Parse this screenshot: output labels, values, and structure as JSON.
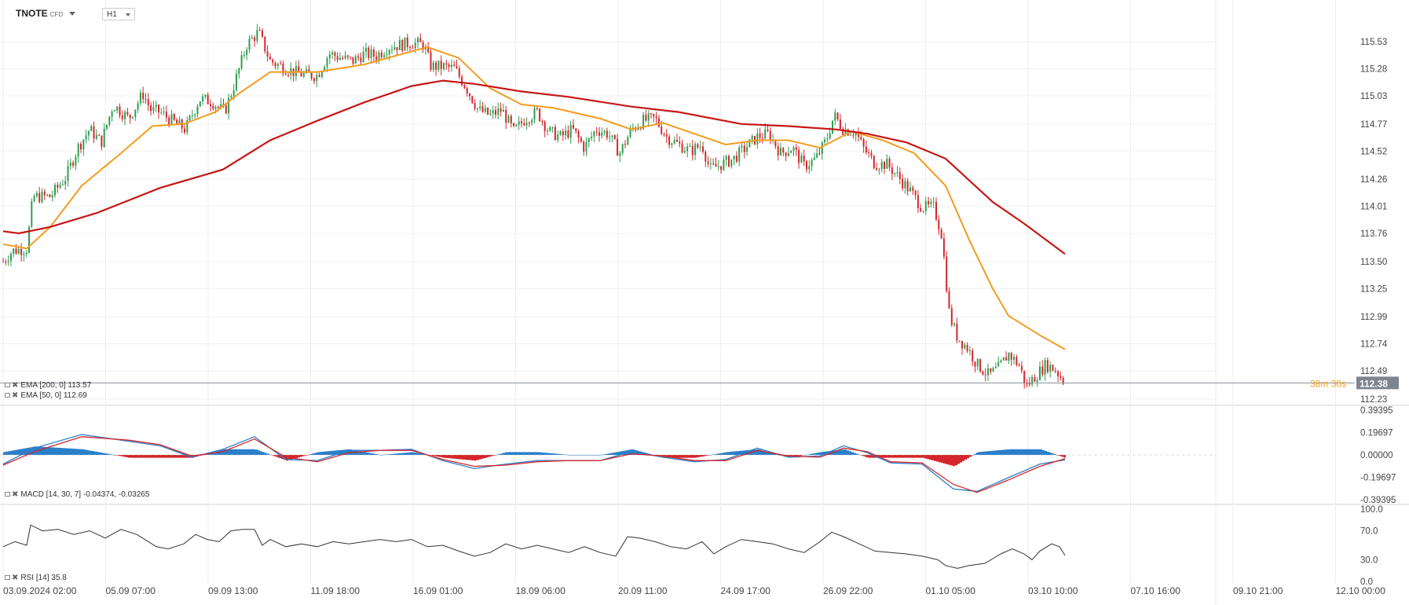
{
  "header": {
    "symbol": "TNOTE",
    "symbol_suffix": "CFD",
    "timeframe": "H1"
  },
  "legends": {
    "ema200": "EMA [200, 0] 113.57",
    "ema50": "EMA [50, 0] 112.69",
    "macd": "MACD [14, 30, 7] -0.04374, -0.03265",
    "rsi": "RSI [14] 35.8"
  },
  "price_label": "112.38",
  "countdown": "38m 30s",
  "colors": {
    "up": "#2e9e4f",
    "down": "#d4262c",
    "ema200": "#c81616",
    "ema50": "#f39c1e",
    "macd_line": "#2a7fc9",
    "signal_line": "#d4262c",
    "rsi": "#333333",
    "price_box": "#7c8590"
  },
  "chart_data": [
    {
      "type": "candlestick",
      "title": "TNOTE CFD H1",
      "x_ticks": [
        "03.09.2024 02:00",
        "05.09 07:00",
        "09.09 13:00",
        "11.09 18:00",
        "16.09 01:00",
        "18.09 06:00",
        "20.09 11:00",
        "24.09 17:00",
        "26.09 22:00",
        "01.10 05:00",
        "03.10 10:00",
        "07.10 16:00",
        "09.10 21:00",
        "12.10 00:00"
      ],
      "y_ticks": [
        "115.53",
        "115.28",
        "115.03",
        "114.77",
        "114.52",
        "114.26",
        "114.01",
        "113.76",
        "113.50",
        "113.25",
        "112.99",
        "112.74",
        "112.49",
        "112.23"
      ],
      "ylim": [
        112.23,
        115.53
      ],
      "candles": [
        {
          "x": 0,
          "y": 113.5
        },
        {
          "x": 12,
          "y": 113.6
        },
        {
          "x": 30,
          "y": 113.62
        },
        {
          "x": 38,
          "y": 114.1
        },
        {
          "x": 60,
          "y": 114.1
        },
        {
          "x": 80,
          "y": 114.28
        },
        {
          "x": 95,
          "y": 114.55
        },
        {
          "x": 110,
          "y": 114.72
        },
        {
          "x": 125,
          "y": 114.6
        },
        {
          "x": 140,
          "y": 114.95
        },
        {
          "x": 160,
          "y": 114.82
        },
        {
          "x": 178,
          "y": 115.05
        },
        {
          "x": 188,
          "y": 114.9
        },
        {
          "x": 200,
          "y": 114.88
        },
        {
          "x": 215,
          "y": 114.8
        },
        {
          "x": 232,
          "y": 114.72
        },
        {
          "x": 250,
          "y": 115.0
        },
        {
          "x": 265,
          "y": 114.98
        },
        {
          "x": 282,
          "y": 114.88
        },
        {
          "x": 295,
          "y": 115.15
        },
        {
          "x": 310,
          "y": 115.5
        },
        {
          "x": 325,
          "y": 115.62
        },
        {
          "x": 340,
          "y": 115.35
        },
        {
          "x": 355,
          "y": 115.3
        },
        {
          "x": 370,
          "y": 115.25
        },
        {
          "x": 385,
          "y": 115.22
        },
        {
          "x": 400,
          "y": 115.22
        },
        {
          "x": 415,
          "y": 115.42
        },
        {
          "x": 430,
          "y": 115.38
        },
        {
          "x": 445,
          "y": 115.35
        },
        {
          "x": 460,
          "y": 115.42
        },
        {
          "x": 475,
          "y": 115.4
        },
        {
          "x": 490,
          "y": 115.48
        },
        {
          "x": 505,
          "y": 115.5
        },
        {
          "x": 520,
          "y": 115.52
        },
        {
          "x": 535,
          "y": 115.5
        },
        {
          "x": 545,
          "y": 115.3
        },
        {
          "x": 560,
          "y": 115.3
        },
        {
          "x": 575,
          "y": 115.28
        },
        {
          "x": 590,
          "y": 115.1
        },
        {
          "x": 605,
          "y": 114.9
        },
        {
          "x": 620,
          "y": 114.85
        },
        {
          "x": 635,
          "y": 114.9
        },
        {
          "x": 650,
          "y": 114.7
        },
        {
          "x": 665,
          "y": 114.82
        },
        {
          "x": 680,
          "y": 114.88
        },
        {
          "x": 695,
          "y": 114.7
        },
        {
          "x": 710,
          "y": 114.65
        },
        {
          "x": 725,
          "y": 114.72
        },
        {
          "x": 740,
          "y": 114.55
        },
        {
          "x": 755,
          "y": 114.72
        },
        {
          "x": 770,
          "y": 114.68
        },
        {
          "x": 785,
          "y": 114.5
        },
        {
          "x": 800,
          "y": 114.72
        },
        {
          "x": 815,
          "y": 114.8
        },
        {
          "x": 830,
          "y": 114.82
        },
        {
          "x": 845,
          "y": 114.65
        },
        {
          "x": 860,
          "y": 114.58
        },
        {
          "x": 875,
          "y": 114.52
        },
        {
          "x": 890,
          "y": 114.58
        },
        {
          "x": 900,
          "y": 114.35
        },
        {
          "x": 915,
          "y": 114.4
        },
        {
          "x": 930,
          "y": 114.45
        },
        {
          "x": 945,
          "y": 114.55
        },
        {
          "x": 960,
          "y": 114.65
        },
        {
          "x": 975,
          "y": 114.68
        },
        {
          "x": 990,
          "y": 114.5
        },
        {
          "x": 1005,
          "y": 114.55
        },
        {
          "x": 1020,
          "y": 114.38
        },
        {
          "x": 1035,
          "y": 114.45
        },
        {
          "x": 1048,
          "y": 114.62
        },
        {
          "x": 1058,
          "y": 114.85
        },
        {
          "x": 1070,
          "y": 114.72
        },
        {
          "x": 1085,
          "y": 114.7
        },
        {
          "x": 1095,
          "y": 114.55
        },
        {
          "x": 1110,
          "y": 114.4
        },
        {
          "x": 1125,
          "y": 114.4
        },
        {
          "x": 1140,
          "y": 114.28
        },
        {
          "x": 1155,
          "y": 114.15
        },
        {
          "x": 1170,
          "y": 114.0
        },
        {
          "x": 1185,
          "y": 114.0
        },
        {
          "x": 1195,
          "y": 113.75
        },
        {
          "x": 1205,
          "y": 113.0
        },
        {
          "x": 1215,
          "y": 112.8
        },
        {
          "x": 1228,
          "y": 112.7
        },
        {
          "x": 1240,
          "y": 112.55
        },
        {
          "x": 1255,
          "y": 112.45
        },
        {
          "x": 1268,
          "y": 112.52
        },
        {
          "x": 1280,
          "y": 112.65
        },
        {
          "x": 1293,
          "y": 112.55
        },
        {
          "x": 1303,
          "y": 112.35
        },
        {
          "x": 1315,
          "y": 112.45
        },
        {
          "x": 1328,
          "y": 112.55
        },
        {
          "x": 1340,
          "y": 112.5
        },
        {
          "x": 1352,
          "y": 112.38
        }
      ],
      "ema200": [
        [
          0,
          113.78
        ],
        [
          20,
          113.76
        ],
        [
          60,
          113.82
        ],
        [
          120,
          113.95
        ],
        [
          200,
          114.18
        ],
        [
          280,
          114.35
        ],
        [
          340,
          114.62
        ],
        [
          400,
          114.8
        ],
        [
          460,
          114.97
        ],
        [
          520,
          115.12
        ],
        [
          560,
          115.17
        ],
        [
          600,
          115.14
        ],
        [
          660,
          115.07
        ],
        [
          720,
          115.02
        ],
        [
          800,
          114.93
        ],
        [
          860,
          114.88
        ],
        [
          940,
          114.77
        ],
        [
          1000,
          114.75
        ],
        [
          1060,
          114.72
        ],
        [
          1100,
          114.68
        ],
        [
          1150,
          114.6
        ],
        [
          1200,
          114.45
        ],
        [
          1260,
          114.05
        ],
        [
          1300,
          113.85
        ],
        [
          1352,
          113.57
        ]
      ],
      "ema50": [
        [
          0,
          113.66
        ],
        [
          30,
          113.62
        ],
        [
          60,
          113.82
        ],
        [
          100,
          114.2
        ],
        [
          150,
          114.5
        ],
        [
          190,
          114.75
        ],
        [
          230,
          114.77
        ],
        [
          270,
          114.88
        ],
        [
          300,
          115.05
        ],
        [
          340,
          115.25
        ],
        [
          400,
          115.25
        ],
        [
          460,
          115.32
        ],
        [
          500,
          115.4
        ],
        [
          540,
          115.48
        ],
        [
          580,
          115.38
        ],
        [
          620,
          115.1
        ],
        [
          660,
          114.95
        ],
        [
          700,
          114.92
        ],
        [
          760,
          114.82
        ],
        [
          800,
          114.72
        ],
        [
          840,
          114.78
        ],
        [
          880,
          114.68
        ],
        [
          920,
          114.58
        ],
        [
          960,
          114.62
        ],
        [
          1000,
          114.62
        ],
        [
          1040,
          114.55
        ],
        [
          1080,
          114.7
        ],
        [
          1120,
          114.62
        ],
        [
          1160,
          114.5
        ],
        [
          1200,
          114.2
        ],
        [
          1230,
          113.7
        ],
        [
          1260,
          113.25
        ],
        [
          1280,
          113.0
        ],
        [
          1320,
          112.82
        ],
        [
          1352,
          112.69
        ]
      ]
    },
    {
      "type": "histogram+line",
      "title": "MACD [14, 30, 7]",
      "y_ticks": [
        "0.39395",
        "0.19697",
        "0.00000",
        "-0.19697",
        "-0.39395"
      ],
      "ylim": [
        -0.39395,
        0.39395
      ],
      "macd": [
        [
          0,
          -0.08
        ],
        [
          40,
          0.06
        ],
        [
          100,
          0.18
        ],
        [
          160,
          0.12
        ],
        [
          200,
          0.08
        ],
        [
          240,
          -0.02
        ],
        [
          280,
          0.05
        ],
        [
          320,
          0.16
        ],
        [
          360,
          -0.04
        ],
        [
          400,
          -0.05
        ],
        [
          440,
          0.04
        ],
        [
          480,
          0.04
        ],
        [
          520,
          0.05
        ],
        [
          560,
          -0.05
        ],
        [
          600,
          -0.12
        ],
        [
          640,
          -0.08
        ],
        [
          680,
          -0.05
        ],
        [
          720,
          -0.05
        ],
        [
          760,
          -0.05
        ],
        [
          800,
          0.03
        ],
        [
          840,
          -0.02
        ],
        [
          880,
          -0.06
        ],
        [
          920,
          -0.04
        ],
        [
          960,
          0.06
        ],
        [
          1000,
          -0.02
        ],
        [
          1040,
          -0.01
        ],
        [
          1070,
          0.08
        ],
        [
          1100,
          0.02
        ],
        [
          1130,
          -0.07
        ],
        [
          1170,
          -0.08
        ],
        [
          1210,
          -0.3
        ],
        [
          1240,
          -0.32
        ],
        [
          1280,
          -0.2
        ],
        [
          1320,
          -0.08
        ],
        [
          1352,
          -0.04374
        ]
      ],
      "signal": [
        [
          0,
          -0.09
        ],
        [
          40,
          0.03
        ],
        [
          100,
          0.16
        ],
        [
          160,
          0.13
        ],
        [
          200,
          0.09
        ],
        [
          240,
          -0.01
        ],
        [
          280,
          0.03
        ],
        [
          320,
          0.14
        ],
        [
          360,
          -0.02
        ],
        [
          400,
          -0.06
        ],
        [
          440,
          0.02
        ],
        [
          480,
          0.04
        ],
        [
          520,
          0.04
        ],
        [
          560,
          -0.04
        ],
        [
          600,
          -0.1
        ],
        [
          640,
          -0.09
        ],
        [
          680,
          -0.06
        ],
        [
          720,
          -0.05
        ],
        [
          760,
          -0.05
        ],
        [
          800,
          0.01
        ],
        [
          840,
          -0.01
        ],
        [
          880,
          -0.05
        ],
        [
          920,
          -0.05
        ],
        [
          960,
          0.04
        ],
        [
          1000,
          -0.01
        ],
        [
          1040,
          -0.02
        ],
        [
          1070,
          0.06
        ],
        [
          1100,
          0.03
        ],
        [
          1130,
          -0.06
        ],
        [
          1170,
          -0.07
        ],
        [
          1210,
          -0.26
        ],
        [
          1240,
          -0.33
        ],
        [
          1280,
          -0.22
        ],
        [
          1320,
          -0.1
        ],
        [
          1352,
          -0.03265
        ]
      ]
    },
    {
      "type": "line",
      "title": "RSI [14]",
      "y_ticks": [
        "100.0",
        "70.0",
        "30.0",
        "0.0"
      ],
      "ylim": [
        0,
        100
      ],
      "rsi": [
        [
          0,
          48
        ],
        [
          15,
          55
        ],
        [
          30,
          50
        ],
        [
          35,
          78
        ],
        [
          50,
          70
        ],
        [
          70,
          72
        ],
        [
          90,
          65
        ],
        [
          110,
          70
        ],
        [
          130,
          60
        ],
        [
          150,
          72
        ],
        [
          170,
          65
        ],
        [
          185,
          55
        ],
        [
          195,
          48
        ],
        [
          210,
          45
        ],
        [
          230,
          52
        ],
        [
          245,
          65
        ],
        [
          260,
          58
        ],
        [
          275,
          55
        ],
        [
          290,
          70
        ],
        [
          305,
          72
        ],
        [
          320,
          72
        ],
        [
          330,
          50
        ],
        [
          340,
          58
        ],
        [
          360,
          48
        ],
        [
          380,
          52
        ],
        [
          400,
          48
        ],
        [
          420,
          55
        ],
        [
          440,
          52
        ],
        [
          460,
          55
        ],
        [
          480,
          58
        ],
        [
          500,
          55
        ],
        [
          520,
          58
        ],
        [
          540,
          48
        ],
        [
          560,
          50
        ],
        [
          580,
          42
        ],
        [
          600,
          35
        ],
        [
          620,
          40
        ],
        [
          640,
          52
        ],
        [
          660,
          45
        ],
        [
          680,
          50
        ],
        [
          700,
          45
        ],
        [
          720,
          40
        ],
        [
          740,
          48
        ],
        [
          760,
          40
        ],
        [
          780,
          35
        ],
        [
          795,
          62
        ],
        [
          810,
          60
        ],
        [
          830,
          55
        ],
        [
          850,
          48
        ],
        [
          870,
          45
        ],
        [
          890,
          55
        ],
        [
          905,
          38
        ],
        [
          920,
          48
        ],
        [
          940,
          58
        ],
        [
          960,
          55
        ],
        [
          980,
          52
        ],
        [
          1000,
          45
        ],
        [
          1020,
          40
        ],
        [
          1040,
          55
        ],
        [
          1055,
          68
        ],
        [
          1070,
          62
        ],
        [
          1090,
          52
        ],
        [
          1110,
          42
        ],
        [
          1130,
          40
        ],
        [
          1150,
          38
        ],
        [
          1170,
          35
        ],
        [
          1190,
          30
        ],
        [
          1200,
          22
        ],
        [
          1215,
          18
        ],
        [
          1230,
          22
        ],
        [
          1250,
          25
        ],
        [
          1270,
          38
        ],
        [
          1285,
          45
        ],
        [
          1300,
          38
        ],
        [
          1310,
          30
        ],
        [
          1320,
          42
        ],
        [
          1335,
          52
        ],
        [
          1345,
          48
        ],
        [
          1352,
          36
        ]
      ]
    }
  ]
}
